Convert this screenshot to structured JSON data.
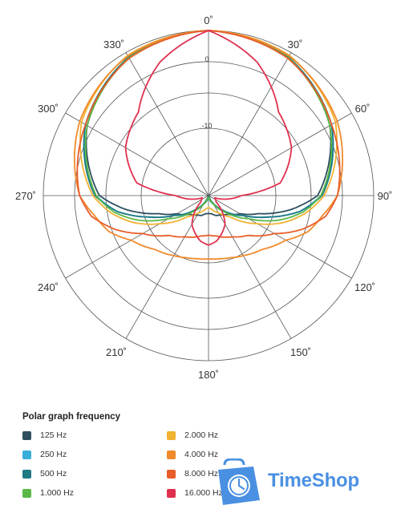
{
  "chart_data": {
    "type": "polar",
    "title": "",
    "angle_labels": [
      "0˚",
      "30˚",
      "60˚",
      "90˚",
      "120˚",
      "150˚",
      "180˚",
      "210˚",
      "240˚",
      "270˚",
      "300˚",
      "330˚"
    ],
    "angle_values": [
      0,
      30,
      60,
      90,
      120,
      150,
      180,
      210,
      240,
      270,
      300,
      330
    ],
    "radial_labels": [
      "0",
      "-10"
    ],
    "radial_range": [
      -25,
      0
    ],
    "grid": true,
    "legend_title": "Polar graph frequency",
    "legend_position": "bottom-left",
    "series": [
      {
        "name": "125 Hz",
        "color": "#2f4f5f",
        "angles": [
          0,
          30,
          60,
          90,
          100,
          110,
          120,
          135,
          150,
          160,
          170,
          180
        ],
        "values": [
          0,
          -0.8,
          -3.8,
          -8.5,
          -12.5,
          -17.0,
          -19.5,
          -21.0,
          -21.6,
          -21.8,
          -22.2,
          -22.3
        ]
      },
      {
        "name": "250 Hz",
        "color": "#3aaed8",
        "angles": [
          0,
          30,
          60,
          90,
          100,
          110,
          120,
          135,
          150,
          160,
          170,
          180
        ],
        "values": [
          0,
          -0.8,
          -3.5,
          -8.0,
          -11.0,
          -15.5,
          -19.0,
          -21.5,
          -23.5,
          -24.0,
          -24.5,
          -24.6
        ]
      },
      {
        "name": "500 Hz",
        "color": "#1e7a85",
        "angles": [
          0,
          30,
          60,
          90,
          100,
          110,
          120,
          135,
          150,
          160,
          170,
          180
        ],
        "values": [
          0,
          -0.8,
          -3.5,
          -7.8,
          -11.0,
          -15.5,
          -19.0,
          -21.8,
          -23.8,
          -24.4,
          -24.8,
          -24.9
        ]
      },
      {
        "name": "1.000 Hz",
        "color": "#5ab847",
        "angles": [
          0,
          30,
          60,
          90,
          100,
          110,
          120,
          135,
          150,
          160,
          170,
          180
        ],
        "values": [
          0,
          -0.9,
          -3.8,
          -8.0,
          -10.5,
          -14.0,
          -18.0,
          -21.5,
          -23.5,
          -24.2,
          -24.6,
          -24.7
        ]
      },
      {
        "name": "2.000 Hz",
        "color": "#f2b233",
        "angles": [
          0,
          30,
          60,
          90,
          100,
          110,
          120,
          135,
          150,
          160,
          170,
          180
        ],
        "values": [
          0,
          -0.5,
          -2.8,
          -7.5,
          -10.0,
          -13.0,
          -16.5,
          -20.5,
          -22.0,
          -22.5,
          -23.0,
          -23.2
        ]
      },
      {
        "name": "4.000 Hz",
        "color": "#f08a2c",
        "angles": [
          0,
          30,
          60,
          90,
          100,
          110,
          120,
          135,
          150,
          160,
          170,
          180
        ],
        "values": [
          0,
          -0.6,
          -2.5,
          -5.5,
          -7.5,
          -9.0,
          -11.5,
          -13.5,
          -14.5,
          -15.0,
          -15.3,
          -15.4
        ]
      },
      {
        "name": "8.000 Hz",
        "color": "#e85d2a",
        "angles": [
          0,
          30,
          60,
          90,
          100,
          110,
          120,
          135,
          150,
          160,
          170,
          180
        ],
        "values": [
          0,
          -1.0,
          -3.5,
          -5.5,
          -7.0,
          -10.0,
          -13.5,
          -16.5,
          -17.8,
          -18.3,
          -18.8,
          -19.0
        ]
      },
      {
        "name": "16.000 Hz",
        "color": "#e0304f",
        "angles": [
          0,
          20,
          30,
          40,
          60,
          80,
          90,
          110,
          130,
          150,
          170,
          180
        ],
        "values": [
          0,
          -3.5,
          -6.0,
          -8.5,
          -10.5,
          -14.0,
          -20.0,
          -24.0,
          -23.5,
          -20.0,
          -18.0,
          -17.5
        ]
      }
    ]
  },
  "legend": {
    "items": [
      {
        "label": "125 Hz",
        "color": "#2f4f5f"
      },
      {
        "label": "250 Hz",
        "color": "#3aaed8"
      },
      {
        "label": "500 Hz",
        "color": "#1e7a85"
      },
      {
        "label": "1.000 Hz",
        "color": "#5ab847"
      },
      {
        "label": "2.000 Hz",
        "color": "#f2b233"
      },
      {
        "label": "4.000 Hz",
        "color": "#f08a2c"
      },
      {
        "label": "8.000 Hz",
        "color": "#e85d2a"
      },
      {
        "label": "16.000 Hz",
        "color": "#e0304f"
      }
    ]
  },
  "watermark": {
    "text": "TimeShop",
    "color": "#4a90e2",
    "icon": "shopping-bag-clock-icon"
  }
}
